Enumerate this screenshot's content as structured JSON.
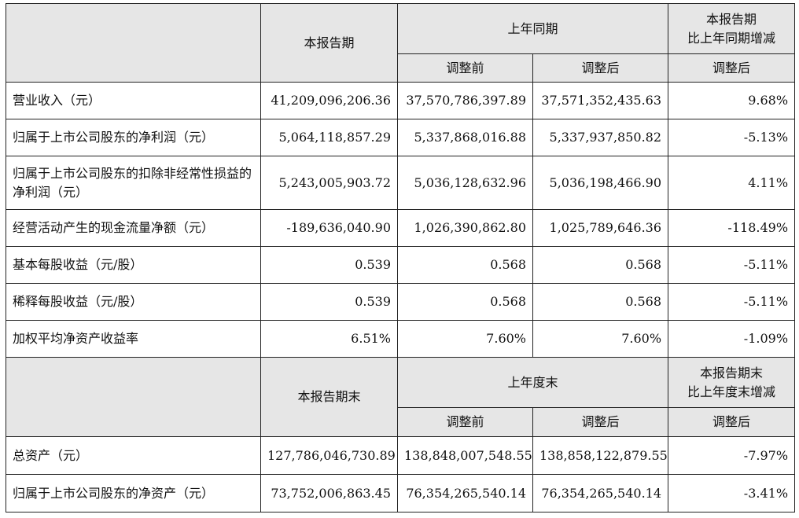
{
  "colors": {
    "header_bg": "#e6e6e6",
    "border": "#222222",
    "text": "#111111"
  },
  "section1": {
    "header": {
      "current": "本报告期",
      "prior": "上年同期",
      "change": "本报告期\n比上年同期增减",
      "before_adj": "调整前",
      "after_adj": "调整后",
      "change_after": "调整后"
    },
    "rows": [
      {
        "label": "营业收入（元）",
        "current": "41,209,096,206.36",
        "before": "37,570,786,397.89",
        "after": "37,571,352,435.63",
        "change": "9.68%"
      },
      {
        "label": "归属于上市公司股东的净利润（元）",
        "current": "5,064,118,857.29",
        "before": "5,337,868,016.88",
        "after": "5,337,937,850.82",
        "change": "-5.13%"
      },
      {
        "label": "归属于上市公司股东的扣除非经常性损益的净利润（元）",
        "current": "5,243,005,903.72",
        "before": "5,036,128,632.96",
        "after": "5,036,198,466.90",
        "change": "4.11%"
      },
      {
        "label": "经营活动产生的现金流量净额（元）",
        "current": "-189,636,040.90",
        "before": "1,026,390,862.80",
        "after": "1,025,789,646.36",
        "change": "-118.49%"
      },
      {
        "label": "基本每股收益（元/股）",
        "current": "0.539",
        "before": "0.568",
        "after": "0.568",
        "change": "-5.11%"
      },
      {
        "label": "稀释每股收益（元/股）",
        "current": "0.539",
        "before": "0.568",
        "after": "0.568",
        "change": "-5.11%"
      },
      {
        "label": "加权平均净资产收益率",
        "current": "6.51%",
        "before": "7.60%",
        "after": "7.60%",
        "change": "-1.09%"
      }
    ]
  },
  "section2": {
    "header": {
      "current": "本报告期末",
      "prior": "上年度末",
      "change": "本报告期末\n比上年度末增减",
      "before_adj": "调整前",
      "after_adj": "调整后",
      "change_after": "调整后"
    },
    "rows": [
      {
        "label": "总资产（元）",
        "current": "127,786,046,730.89",
        "before": "138,848,007,548.55",
        "after": "138,858,122,879.55",
        "change": "-7.97%"
      },
      {
        "label": "归属于上市公司股东的净资产（元）",
        "current": "73,752,006,863.45",
        "before": "76,354,265,540.14",
        "after": "76,354,265,540.14",
        "change": "-3.41%"
      }
    ]
  }
}
